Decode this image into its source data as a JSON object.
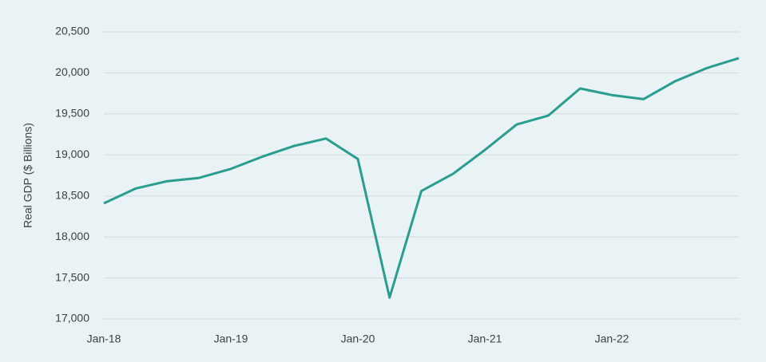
{
  "chart_data": {
    "type": "line",
    "y_label": "Real GDP ($ Billions)",
    "categories": [
      "Jan-18",
      null,
      null,
      null,
      "Jan-19",
      null,
      null,
      null,
      "Jan-20",
      null,
      null,
      null,
      "Jan-21",
      null,
      null,
      null,
      "Jan-22",
      null,
      null,
      null,
      null
    ],
    "series": [
      {
        "name": "Real GDP",
        "color": "#2a9d8f",
        "values": [
          18410,
          18590,
          18680,
          18720,
          18830,
          18980,
          19110,
          19200,
          18950,
          17260,
          18560,
          18770,
          19060,
          19370,
          19480,
          19810,
          19730,
          19680,
          19900,
          20060,
          20180
        ]
      }
    ],
    "ylim": [
      17000,
      20500
    ],
    "yticks": [
      {
        "value": 17000,
        "label": "17,000"
      },
      {
        "value": 17500,
        "label": "17,500"
      },
      {
        "value": 18000,
        "label": "18,000"
      },
      {
        "value": 18500,
        "label": "18,500"
      },
      {
        "value": 19000,
        "label": "19,000"
      },
      {
        "value": 19500,
        "label": "19,500"
      },
      {
        "value": 20000,
        "label": "20,000"
      },
      {
        "value": 20500,
        "label": "20,500"
      }
    ],
    "grid": true
  }
}
